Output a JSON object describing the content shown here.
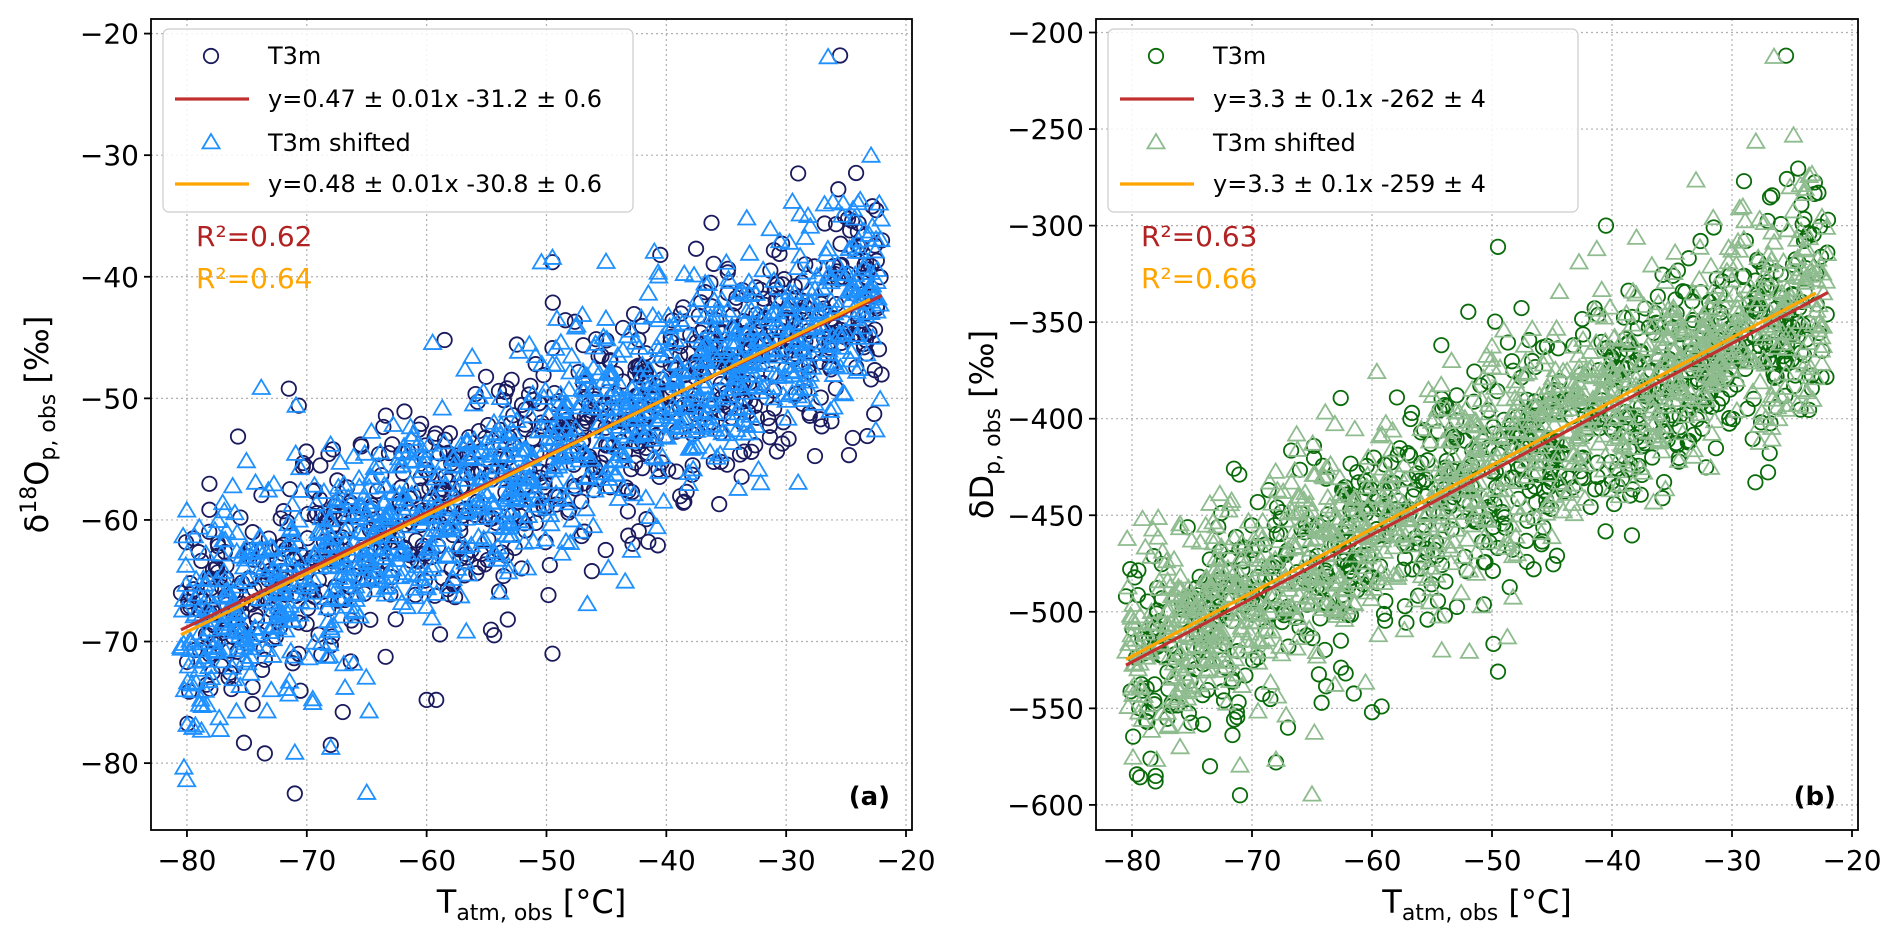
{
  "colors": {
    "t3m_a": "#1a1a5e",
    "shift_a": "#1e90ff",
    "t3m_b": "#0a6b0a",
    "shift_b": "#8fbc8f",
    "fit_t3m": "#c03030",
    "fit_shift": "#ffa500",
    "r2_t3m": "#b22222",
    "r2_shift": "#ffa500"
  },
  "chart_data": [
    {
      "type": "scatter",
      "panel_label": "(a)",
      "xlabel": "T",
      "xlabel_sub": "atm, obs",
      "xlabel_unit": "[°C]",
      "ylabel_pre": "δ",
      "ylabel_sup": "18",
      "ylabel_main": "O",
      "ylabel_sub": "p, obs",
      "ylabel_unit": "[‰]",
      "xlim": [
        -83,
        -19.5
      ],
      "ylim": [
        -85.5,
        -18.8
      ],
      "xticks": [
        -80,
        -70,
        -60,
        -50,
        -40,
        -30,
        -20
      ],
      "xtick_labels": [
        "−80",
        "−70",
        "−60",
        "−50",
        "−40",
        "−30",
        "−20"
      ],
      "yticks": [
        -80,
        -70,
        -60,
        -50,
        -40,
        -30,
        -20
      ],
      "ytick_labels": [
        "−80",
        "−70",
        "−60",
        "−50",
        "−40",
        "−30",
        "−20"
      ],
      "grid": true,
      "legend": {
        "position": "top-left",
        "entries": [
          "T3m",
          "y=0.47 ± 0.01x -31.2 ± 0.6",
          "T3m shifted",
          "y=0.48 ± 0.01x -30.8 ± 0.6"
        ]
      },
      "r2": [
        "R²=0.62",
        "R²=0.64"
      ],
      "fits": [
        {
          "name": "T3m fit",
          "slope": 0.47,
          "intercept": -31.2,
          "x_range": [
            -80.5,
            -22
          ]
        },
        {
          "name": "T3m shifted fit",
          "slope": 0.48,
          "intercept": -30.8,
          "x_range": [
            -80.5,
            -23
          ]
        }
      ],
      "cloud": {
        "x_range": [
          -80.5,
          -22
        ],
        "n_t3m": 900,
        "n_shift": 1200,
        "spread": 4.6,
        "seed": 17
      },
      "series": [
        {
          "name": "T3m",
          "marker": "circle",
          "points": [
            [
              -25.5,
              -21.8
            ],
            [
              -29,
              -31.5
            ],
            [
              -22.8,
              -34.2
            ],
            [
              -80.5,
              -66
            ],
            [
              -71,
              -82.5
            ],
            [
              -73.5,
              -79.2
            ],
            [
              -60,
              -74.8
            ],
            [
              -59.2,
              -74.8
            ],
            [
              -49.5,
              -71
            ],
            [
              -38.5,
              -58.5
            ],
            [
              -41.5,
              -61.8
            ],
            [
              -67,
              -75.8
            ],
            [
              -68,
              -78.5
            ],
            [
              -77.5,
              -63.9
            ],
            [
              -73.5,
              -71.5
            ],
            [
              -71.5,
              -49.2
            ],
            [
              -58.5,
              -45.2
            ],
            [
              -49.5,
              -38.8
            ],
            [
              -40.5,
              -38.2
            ],
            [
              -24,
              -37.5
            ],
            [
              -22,
              -37
            ],
            [
              -23.5,
              -45.8
            ]
          ]
        },
        {
          "name": "T3m shifted",
          "marker": "triangle",
          "points": [
            [
              -26.5,
              -22
            ],
            [
              -80.5,
              -70.5
            ],
            [
              -71,
              -79.2
            ],
            [
              -68,
              -78.8
            ],
            [
              -65,
              -82.5
            ],
            [
              -64.8,
              -75.8
            ],
            [
              -69.5,
              -74.8
            ],
            [
              -73.8,
              -49.2
            ],
            [
              -59.5,
              -45.5
            ],
            [
              -49.5,
              -38.5
            ],
            [
              -41,
              -38
            ],
            [
              -29,
              -57
            ],
            [
              -43.5,
              -54.8
            ],
            [
              -47,
              -43.2
            ],
            [
              -34,
              -57.5
            ],
            [
              -24,
              -34
            ],
            [
              -22.5,
              -37
            ],
            [
              -76,
              -59.5
            ]
          ]
        }
      ]
    },
    {
      "type": "scatter",
      "panel_label": "(b)",
      "xlabel": "T",
      "xlabel_sub": "atm, obs",
      "xlabel_unit": "[°C]",
      "ylabel_pre": "δ",
      "ylabel_sup": "",
      "ylabel_main": "D",
      "ylabel_sub": "p, obs",
      "ylabel_unit": "[‰]",
      "xlim": [
        -83,
        -19.5
      ],
      "ylim": [
        -613,
        -193
      ],
      "xticks": [
        -80,
        -70,
        -60,
        -50,
        -40,
        -30,
        -20
      ],
      "xtick_labels": [
        "−80",
        "−70",
        "−60",
        "−50",
        "−40",
        "−30",
        "−20"
      ],
      "yticks": [
        -600,
        -550,
        -500,
        -450,
        -400,
        -350,
        -300,
        -250,
        -200
      ],
      "ytick_labels": [
        "−600",
        "−550",
        "−500",
        "−450",
        "−400",
        "−350",
        "−300",
        "−250",
        "−200"
      ],
      "grid": true,
      "legend": {
        "position": "top-left",
        "entries": [
          "T3m",
          "y=3.3 ± 0.1x -262 ± 4",
          "T3m shifted",
          "y=3.3 ± 0.1x -259 ± 4"
        ]
      },
      "r2": [
        "R²=0.63",
        "R²=0.66"
      ],
      "fits": [
        {
          "name": "T3m fit",
          "slope": 3.3,
          "intercept": -262,
          "x_range": [
            -80.5,
            -22
          ]
        },
        {
          "name": "T3m shifted fit",
          "slope": 3.3,
          "intercept": -259,
          "x_range": [
            -80.5,
            -23
          ]
        }
      ],
      "cloud": {
        "x_range": [
          -80.5,
          -22
        ],
        "n_t3m": 900,
        "n_shift": 1200,
        "spread": 30,
        "seed": 29
      },
      "series": [
        {
          "name": "T3m",
          "marker": "circle",
          "points": [
            [
              -25.5,
              -212
            ],
            [
              -29,
              -277
            ],
            [
              -22.8,
              -283
            ],
            [
              -80.5,
              -492
            ],
            [
              -71,
              -595
            ],
            [
              -73.5,
              -580
            ],
            [
              -60,
              -552
            ],
            [
              -59.2,
              -549
            ],
            [
              -49.5,
              -531
            ],
            [
              -49.5,
              -311
            ],
            [
              -40.5,
              -300
            ],
            [
              -22,
              -297
            ],
            [
              -24,
              -308
            ],
            [
              -67,
              -560
            ],
            [
              -68,
              -578
            ],
            [
              -77.5,
              -493
            ]
          ]
        },
        {
          "name": "T3m shifted",
          "marker": "triangle",
          "points": [
            [
              -26.5,
              -213
            ],
            [
              -80.5,
              -521
            ],
            [
              -71,
              -580
            ],
            [
              -68,
              -577
            ],
            [
              -65,
              -595
            ],
            [
              -64.8,
              -563
            ],
            [
              -69.5,
              -552
            ],
            [
              -33,
              -277
            ],
            [
              -24,
              -284
            ],
            [
              -22.5,
              -296
            ],
            [
              -76,
              -455
            ],
            [
              -75,
              -541
            ]
          ]
        }
      ]
    }
  ]
}
